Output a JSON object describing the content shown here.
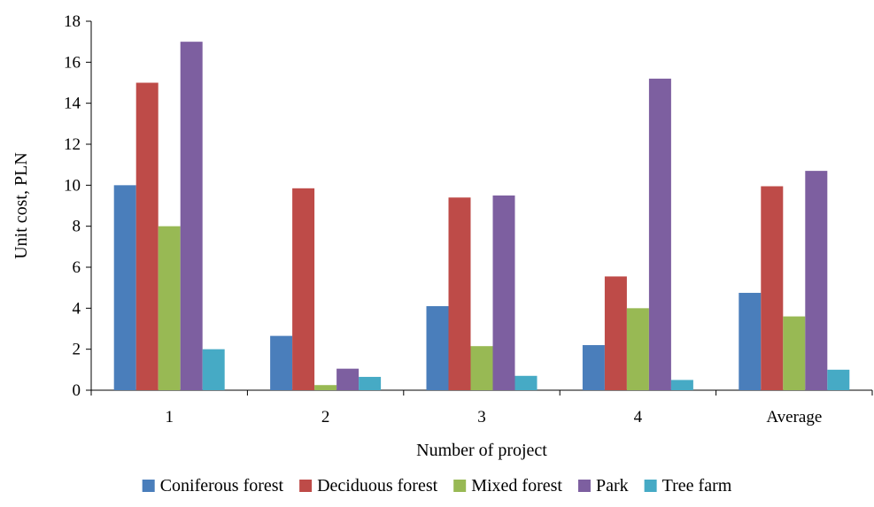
{
  "chart_data": {
    "type": "bar",
    "title": "",
    "xlabel": "Number of project",
    "ylabel": "Unit cost, PLN",
    "ylim": [
      0,
      18
    ],
    "yticks": [
      "0",
      "2",
      "4",
      "6",
      "8",
      "10",
      "12",
      "14",
      "16",
      "18"
    ],
    "categories": [
      "1",
      "2",
      "3",
      "4",
      "Average"
    ],
    "series": [
      {
        "name": "Coniferous forest",
        "color": "#4a7ebb",
        "values": [
          10.0,
          2.65,
          4.1,
          2.2,
          4.75
        ]
      },
      {
        "name": "Deciduous forest",
        "color": "#be4b48",
        "values": [
          15.0,
          9.85,
          9.4,
          5.55,
          9.95
        ]
      },
      {
        "name": "Mixed forest",
        "color": "#98b954",
        "values": [
          8.0,
          0.25,
          2.15,
          4.0,
          3.6
        ]
      },
      {
        "name": "Park",
        "color": "#7d5fa0",
        "values": [
          17.0,
          1.05,
          9.5,
          15.2,
          10.7
        ]
      },
      {
        "name": "Tree farm",
        "color": "#46aac5",
        "values": [
          2.0,
          0.65,
          0.7,
          0.5,
          1.0
        ]
      }
    ],
    "grid": false,
    "legend_position": "bottom"
  }
}
